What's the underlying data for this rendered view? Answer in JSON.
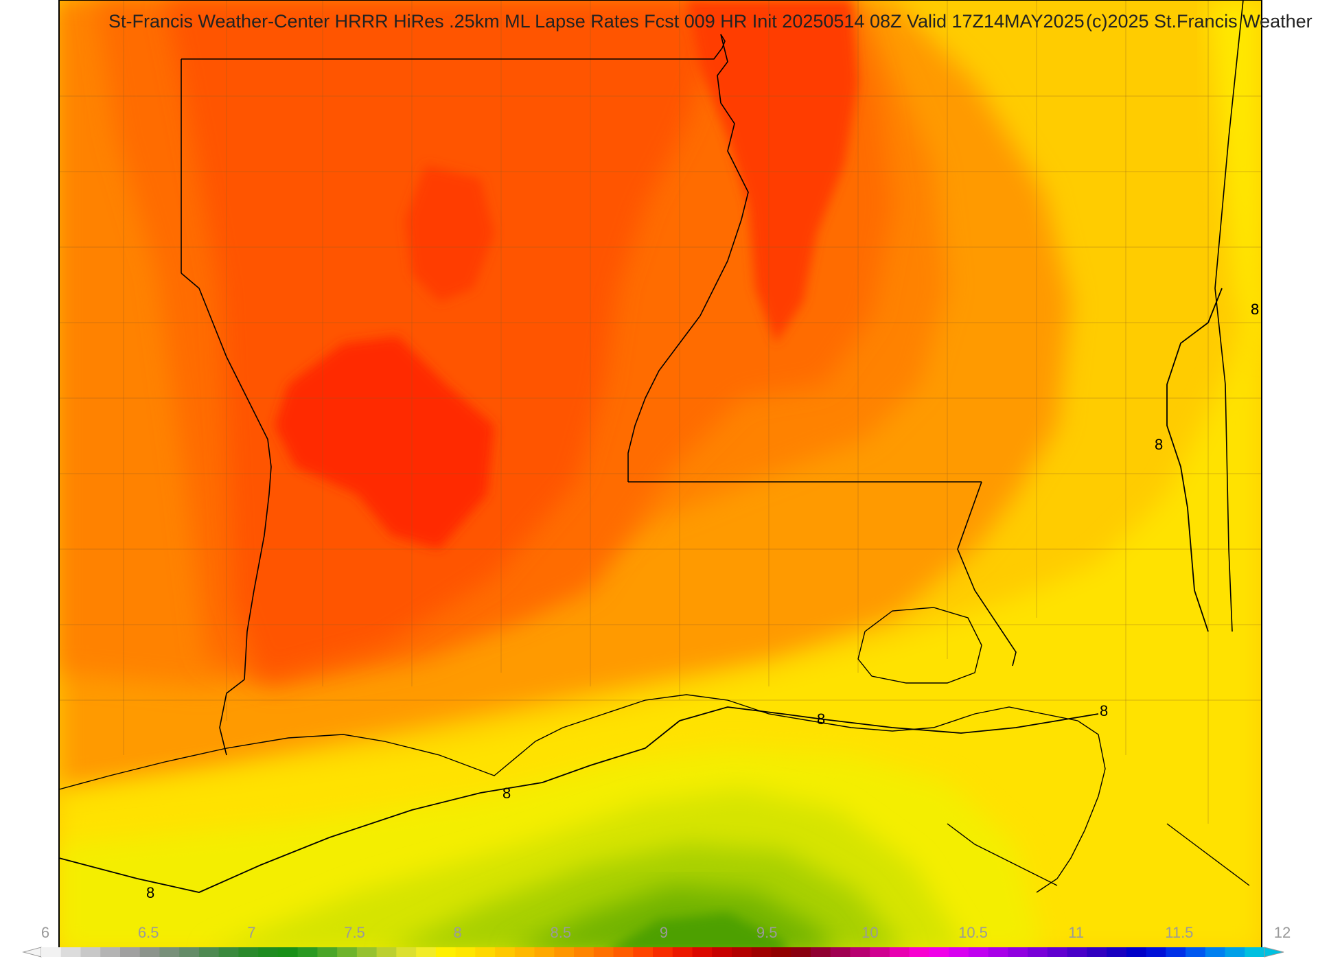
{
  "header": {
    "title": "St-Francis Weather-Center HRRR HiRes .25km ML Lapse Rates  Fcst 009 HR Init 20250514 08Z  Valid 17Z14MAY2025",
    "copyright": "(c)2025 St.Francis Weather"
  },
  "contour": {
    "level_label": "8",
    "label_count": 7
  },
  "colorbar": {
    "min": 6,
    "max": 12,
    "ticks": [
      "6",
      "6.5",
      "7",
      "7.5",
      "8",
      "8.5",
      "9",
      "9.5",
      "10",
      "10.5",
      "11",
      "11.5",
      "12"
    ],
    "colors": [
      "#f2f2f2",
      "#dcdcdc",
      "#c8c8c8",
      "#b4b4b4",
      "#a0a0a0",
      "#8c948c",
      "#78907a",
      "#648c68",
      "#4e8a52",
      "#3a8a3e",
      "#2a8a2c",
      "#1e8c20",
      "#189018",
      "#2a9a22",
      "#4aa628",
      "#6eb42c",
      "#96c230",
      "#bcd030",
      "#dce030",
      "#f2ec28",
      "#fff000",
      "#ffe600",
      "#ffd800",
      "#ffc800",
      "#ffb800",
      "#ffa800",
      "#ff9600",
      "#ff8400",
      "#ff7000",
      "#ff5c00",
      "#ff4400",
      "#f82c00",
      "#ec1800",
      "#dc0800",
      "#c80000",
      "#b40000",
      "#a00000",
      "#920000",
      "#8a0010",
      "#900030",
      "#a00050",
      "#b80070",
      "#d00090",
      "#e800b0",
      "#f800d0",
      "#f000e8",
      "#d800f0",
      "#c000f0",
      "#a800e8",
      "#9000e0",
      "#7800d8",
      "#6000d0",
      "#4800c8",
      "#3000c0",
      "#1800c0",
      "#0000c8",
      "#0010d8",
      "#0030e8",
      "#0058f0",
      "#0080f0",
      "#00a0e8",
      "#00c0e0"
    ]
  }
}
